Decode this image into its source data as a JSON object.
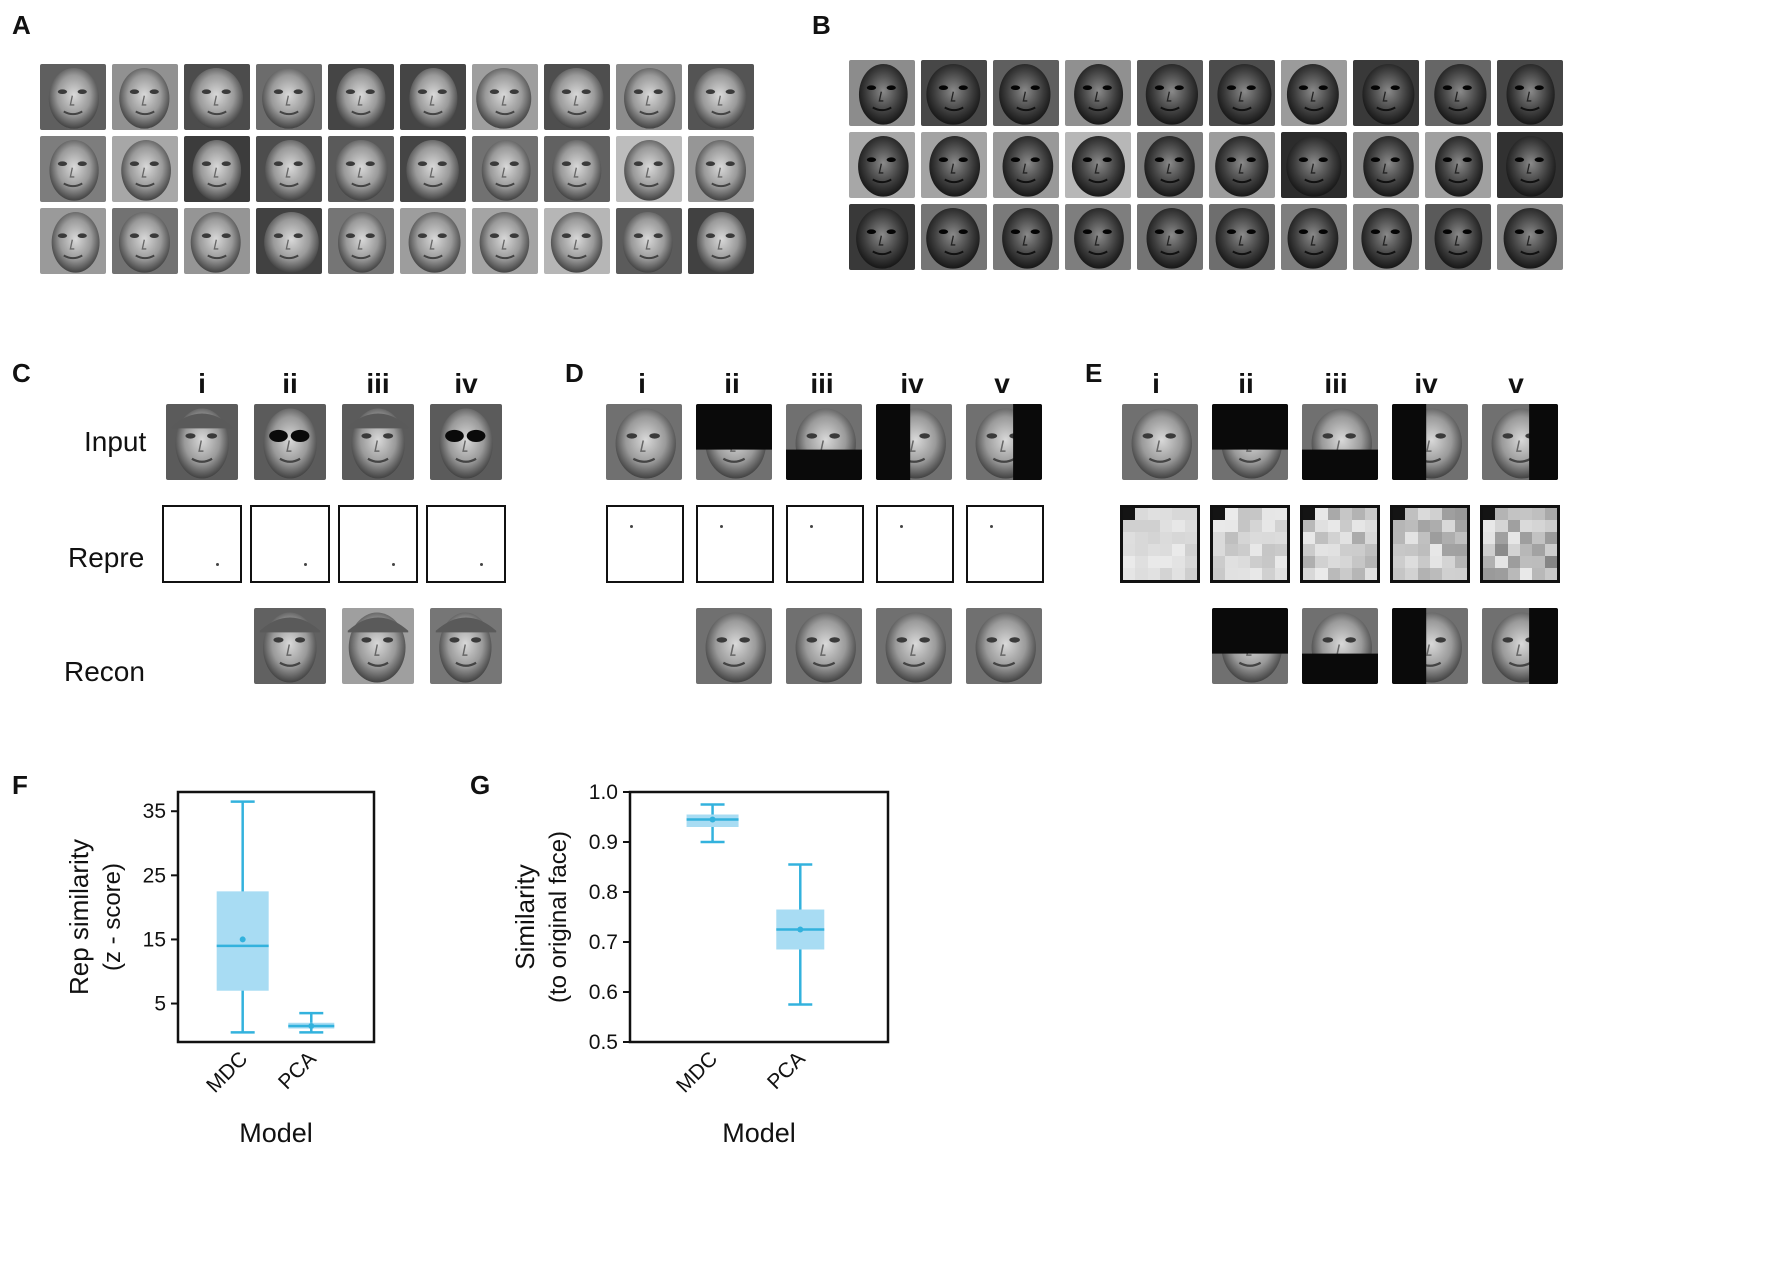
{
  "panels": {
    "A": "A",
    "B": "B",
    "C": "C",
    "D": "D",
    "E": "E",
    "F": "F",
    "G": "G"
  },
  "panel_c": {
    "columns": [
      "i",
      "ii",
      "iii",
      "iv"
    ],
    "rows": [
      "Input",
      "Repre",
      "Recon"
    ]
  },
  "panel_d": {
    "columns": [
      "i",
      "ii",
      "iii",
      "iv",
      "v"
    ]
  },
  "panel_e": {
    "columns": [
      "i",
      "ii",
      "iii",
      "iv",
      "v"
    ]
  },
  "chart_data": [
    {
      "panel": "F",
      "type": "box",
      "xlabel": "Model",
      "ylabel": "Rep similarity",
      "ylabel2": "(z - score)",
      "categories": [
        "MDC",
        "PCA"
      ],
      "ylim": [
        -1,
        38
      ],
      "yticks": [
        5,
        15,
        25,
        35
      ],
      "boxes": [
        {
          "name": "MDC",
          "whisker_low": 0.5,
          "q1": 7,
          "median": 14,
          "mean": 15,
          "q3": 22.5,
          "whisker_high": 36.5
        },
        {
          "name": "PCA",
          "whisker_low": 0.5,
          "q1": 1.1,
          "median": 1.5,
          "mean": 1.5,
          "q3": 2,
          "whisker_high": 3.5
        }
      ],
      "color": "#33b2dd",
      "fill": "#a8dcf3"
    },
    {
      "panel": "G",
      "type": "box",
      "xlabel": "Model",
      "ylabel": "Similarity",
      "ylabel2": "(to original face)",
      "categories": [
        "MDC",
        "PCA"
      ],
      "ylim": [
        0.5,
        1.0
      ],
      "yticks": [
        0.5,
        0.6,
        0.7,
        0.8,
        0.9,
        1.0
      ],
      "boxes": [
        {
          "name": "MDC",
          "whisker_low": 0.9,
          "q1": 0.93,
          "median": 0.945,
          "mean": 0.945,
          "q3": 0.955,
          "whisker_high": 0.975
        },
        {
          "name": "PCA",
          "whisker_low": 0.575,
          "q1": 0.685,
          "median": 0.725,
          "mean": 0.725,
          "q3": 0.765,
          "whisker_high": 0.855
        }
      ],
      "color": "#33b2dd",
      "fill": "#a8dcf3"
    }
  ]
}
